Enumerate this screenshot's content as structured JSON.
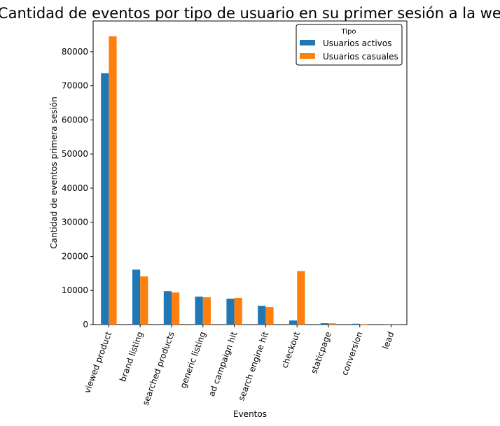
{
  "chart_data": {
    "type": "bar",
    "title": "Cantidad de eventos por tipo de usuario en su primer sesión a la web",
    "xlabel": "Eventos",
    "ylabel": "Cantidad de eventos primera sesión",
    "categories": [
      "viewed product",
      "brand listing",
      "searched products",
      "generic listing",
      "ad campaign hit",
      "search engine hit",
      "checkout",
      "staticpage",
      "conversion",
      "lead"
    ],
    "series": [
      {
        "name": "Usuarios activos",
        "color": "#1f77b4",
        "values": [
          73700,
          16100,
          9800,
          8200,
          7600,
          5500,
          1200,
          400,
          250,
          60
        ]
      },
      {
        "name": "Usuarios casuales",
        "color": "#ff7f0e",
        "values": [
          84500,
          14100,
          9400,
          8000,
          7800,
          5100,
          15700,
          350,
          120,
          30
        ]
      }
    ],
    "ylim": [
      0,
      89000
    ],
    "yticks": [
      0,
      10000,
      20000,
      30000,
      40000,
      50000,
      60000,
      70000,
      80000
    ],
    "legend": {
      "title": "Tipo",
      "placement": "top-right"
    },
    "grid": false
  }
}
